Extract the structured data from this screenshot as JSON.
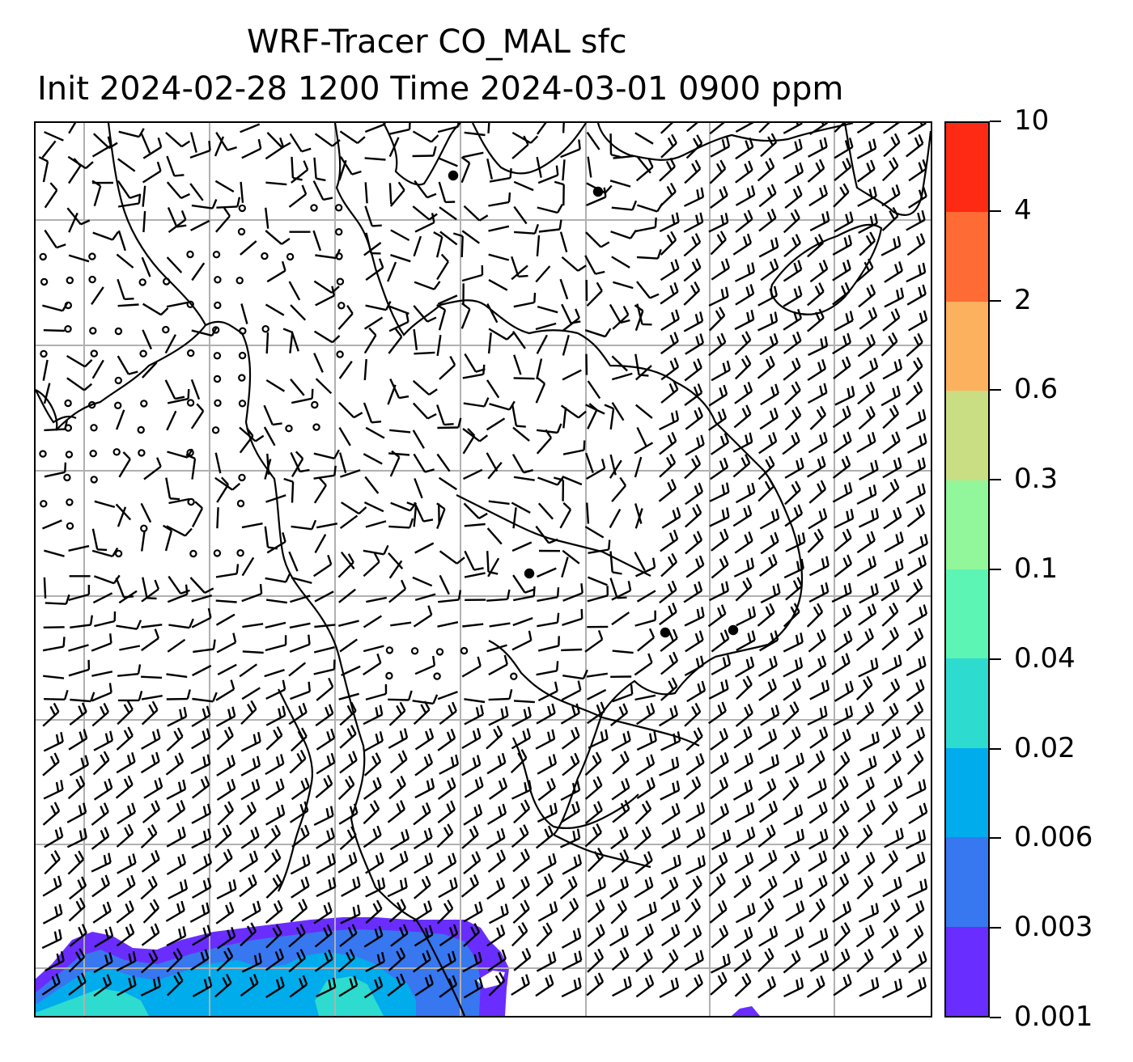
{
  "title": {
    "line1": "WRF-Tracer CO_MAL sfc",
    "line2": "Init 2024-02-28 1200 Time 2024-03-01 0900 ppm"
  },
  "colorbar": {
    "levels": [
      "0.001",
      "0.003",
      "0.006",
      "0.02",
      "0.04",
      "0.1",
      "0.3",
      "0.6",
      "2",
      "4",
      "10"
    ],
    "colors": [
      "#6a2dff",
      "#3777f0",
      "#00acec",
      "#2ddccf",
      "#5df5b4",
      "#92f79a",
      "#c9dd83",
      "#fbb15e",
      "#ff6b34",
      "#ff2a13"
    ]
  },
  "map": {
    "gridlines": true,
    "gridline_color": "#b0b0b0",
    "coastline_color": "#000000",
    "field_name": "CO_MAL",
    "wind_symbols": "barbs"
  }
}
